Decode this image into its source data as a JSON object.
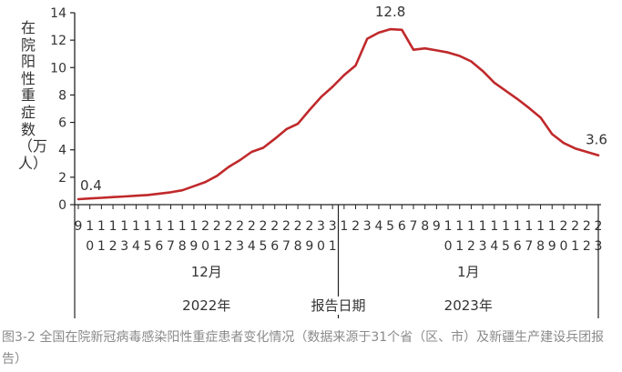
{
  "chart_data": {
    "type": "line",
    "ylabel": "在院阳性重症数（万人）",
    "xlabel": "报告日期",
    "ylim": [
      0,
      14
    ],
    "yticks": [
      0,
      2,
      4,
      6,
      8,
      10,
      12,
      14
    ],
    "color": "#c0292b",
    "x": [
      "2022-12-09",
      "2022-12-10",
      "2022-12-11",
      "2022-12-12",
      "2022-12-13",
      "2022-12-14",
      "2022-12-15",
      "2022-12-16",
      "2022-12-17",
      "2022-12-18",
      "2022-12-19",
      "2022-12-20",
      "2022-12-21",
      "2022-12-22",
      "2022-12-23",
      "2022-12-24",
      "2022-12-25",
      "2022-12-26",
      "2022-12-27",
      "2022-12-28",
      "2022-12-29",
      "2022-12-30",
      "2022-12-31",
      "2023-01-01",
      "2023-01-02",
      "2023-01-03",
      "2023-01-04",
      "2023-01-05",
      "2023-01-06",
      "2023-01-07",
      "2023-01-08",
      "2023-01-09",
      "2023-01-10",
      "2023-01-11",
      "2023-01-12",
      "2023-01-13",
      "2023-01-14",
      "2023-01-15",
      "2023-01-16",
      "2023-01-17",
      "2023-01-18",
      "2023-01-19",
      "2023-01-20",
      "2023-01-21",
      "2023-01-22",
      "2023-01-23"
    ],
    "tick_labels": [
      "9",
      "10",
      "11",
      "12",
      "13",
      "14",
      "15",
      "16",
      "17",
      "18",
      "19",
      "20",
      "21",
      "22",
      "23",
      "24",
      "25",
      "26",
      "27",
      "28",
      "29",
      "30",
      "31",
      "1",
      "2",
      "3",
      "4",
      "5",
      "6",
      "7",
      "8",
      "9",
      "10",
      "11",
      "12",
      "13",
      "14",
      "15",
      "16",
      "17",
      "18",
      "19",
      "20",
      "21",
      "22",
      "23"
    ],
    "values": [
      0.4,
      0.45,
      0.5,
      0.55,
      0.6,
      0.65,
      0.7,
      0.8,
      0.9,
      1.05,
      1.35,
      1.65,
      2.1,
      2.75,
      3.25,
      3.85,
      4.15,
      4.8,
      5.5,
      5.9,
      6.9,
      7.85,
      8.6,
      9.45,
      10.15,
      12.1,
      12.55,
      12.8,
      12.75,
      11.3,
      11.4,
      11.25,
      11.1,
      10.85,
      10.45,
      9.75,
      8.9,
      8.3,
      7.7,
      7.05,
      6.35,
      5.15,
      4.5,
      4.1,
      3.85,
      3.6
    ],
    "annotations": [
      {
        "x": "2023-01-05",
        "text": "12.8"
      },
      {
        "x": "2022-12-09",
        "text": "0.4"
      },
      {
        "x": "2023-01-23",
        "text": "3.6"
      }
    ],
    "month_groups": [
      {
        "label": "12月",
        "year": "2022年"
      },
      {
        "label": "1月",
        "year": "2023年"
      }
    ],
    "grid": false
  },
  "caption": "图3-2  全国在院新冠病毒感染阳性重症患者变化情况（数据来源于31个省（区、市）及新疆生产建设兵团报告）"
}
